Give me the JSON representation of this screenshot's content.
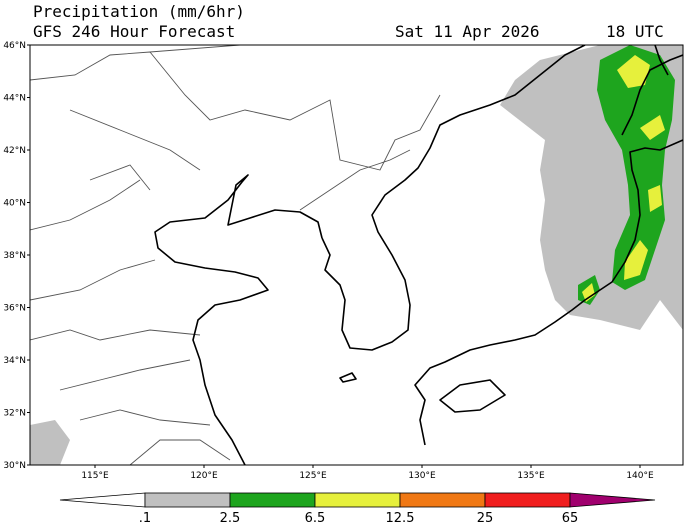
{
  "header": {
    "title": "Precipitation (mm/6hr)",
    "subtitle": "GFS 246 Hour Forecast",
    "valid_date": "Sat 11 Apr 2026",
    "valid_time": "18 UTC"
  },
  "map": {
    "lat_labels": [
      "46°N",
      "44°N",
      "42°N",
      "40°N",
      "38°N",
      "36°N",
      "34°N",
      "32°N",
      "30°N"
    ],
    "lon_labels": [
      "115°E",
      "120°E",
      "125°E",
      "130°E",
      "135°E",
      "140°E"
    ]
  },
  "colorbar": {
    "labels": [
      ".1",
      "2.5",
      "6.5",
      "12.5",
      "25",
      "65"
    ]
  }
}
